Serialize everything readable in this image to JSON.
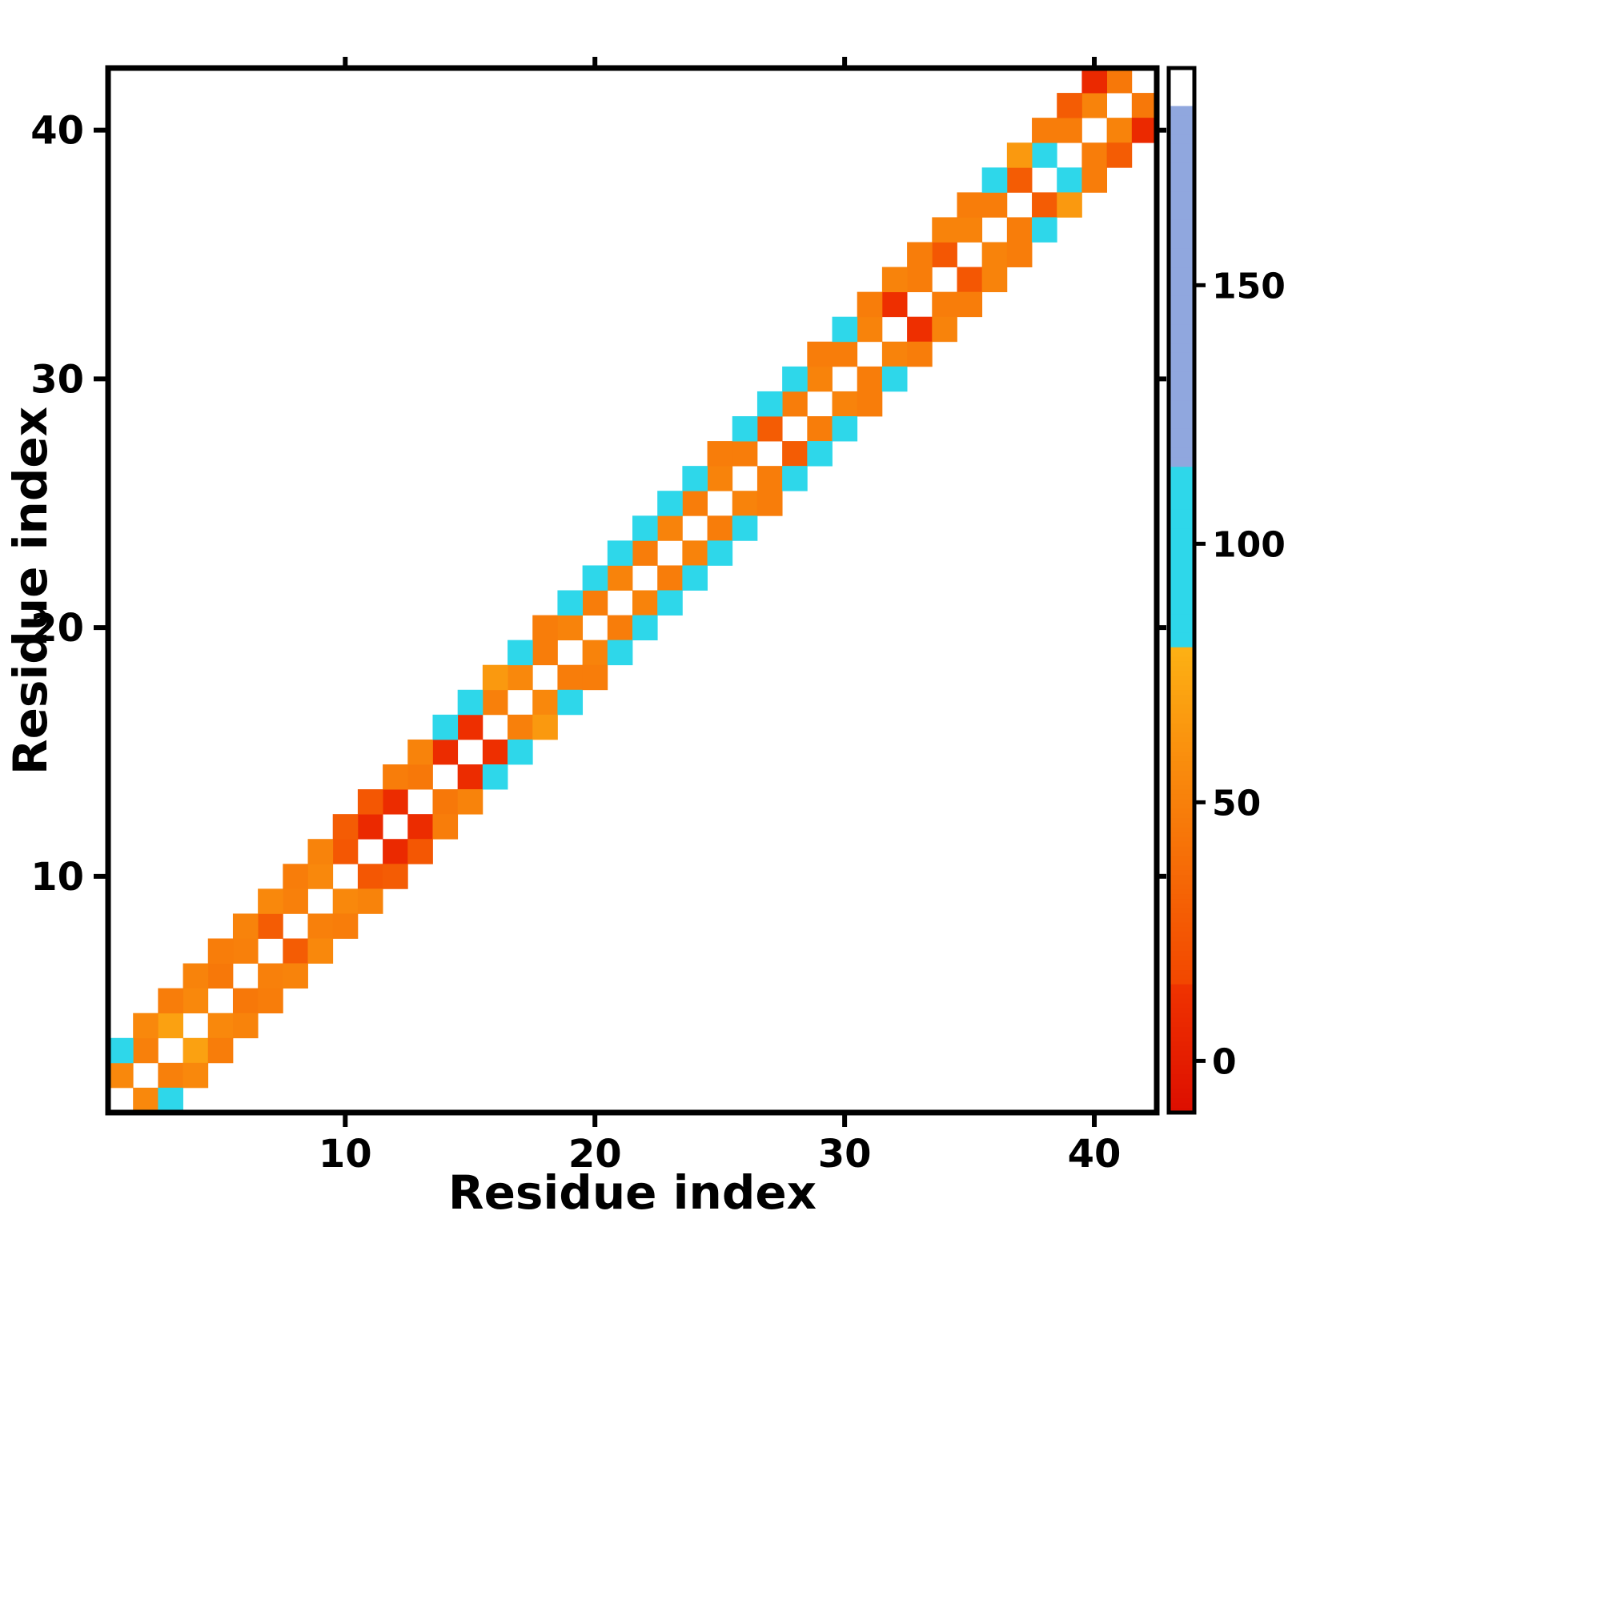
{
  "chart_data": {
    "type": "heatmap",
    "title": "",
    "xlabel": "Residue index",
    "ylabel": "Residue index",
    "n_residues": 42,
    "x_ticks": [
      10,
      20,
      30,
      40
    ],
    "y_ticks": [
      10,
      20,
      30,
      40
    ],
    "symmetric": true,
    "description": "Residue-residue banded matrix: cells on off-diagonals 1 and 2 are colored, main diagonal is white/empty",
    "diag1_values": [
      55,
      50,
      70,
      55,
      45,
      50,
      28,
      50,
      55,
      25,
      8,
      10,
      45,
      10,
      12,
      50,
      55,
      48,
      52,
      48,
      52,
      48,
      52,
      48,
      52,
      48,
      28,
      48,
      52,
      48,
      52,
      12,
      48,
      25,
      52,
      48,
      28,
      100,
      48,
      52,
      45
    ],
    "diag2_values": [
      100,
      55,
      48,
      52,
      48,
      52,
      55,
      48,
      52,
      28,
      25,
      48,
      52,
      100,
      100,
      65,
      100,
      48,
      100,
      100,
      100,
      100,
      100,
      100,
      48,
      100,
      100,
      100,
      48,
      95,
      48,
      52,
      48,
      52,
      48,
      100,
      65,
      48,
      28,
      8
    ],
    "colorbar": {
      "ticks": [
        0,
        50,
        100,
        150
      ],
      "range": [
        -10,
        192
      ]
    },
    "colormap": {
      "min": -10,
      "segments": [
        {
          "upto": 15,
          "from": "#dd0e00",
          "to": "#f03400"
        },
        {
          "upto": 80,
          "from": "#f24700",
          "to": "#fdb114"
        },
        {
          "upto": 115,
          "from": "#2ed7ea",
          "to": "#2ed7ea"
        },
        {
          "upto": 185,
          "from": "#90a7de",
          "to": "#90a7de"
        },
        {
          "upto": 192,
          "from": "#ffffff",
          "to": "#ffffff"
        }
      ]
    },
    "colors": {
      "frame": "#000000",
      "background": "#ffffff",
      "red_low": "#dd0e00",
      "orange_mid": "#f98608",
      "cyan_high": "#2ed7ea",
      "periwinkle": "#90a7de"
    }
  }
}
